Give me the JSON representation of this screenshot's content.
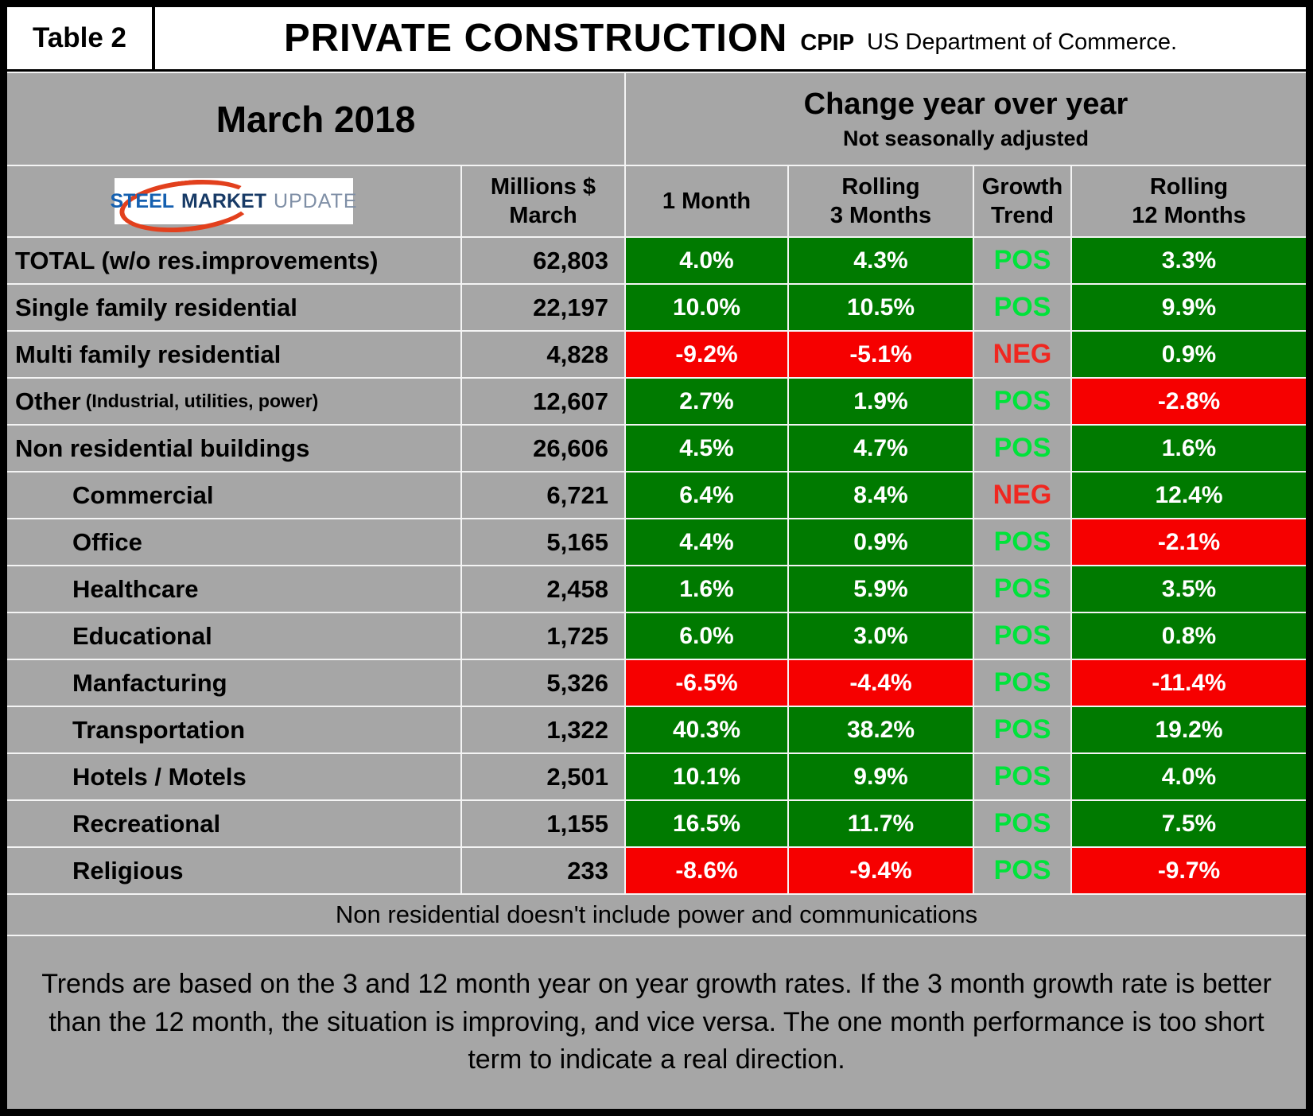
{
  "palette": {
    "gray": "#a6a6a6",
    "green": "#007a00",
    "red": "#f60000",
    "posText": "#00e33a",
    "negText": "#f02720"
  },
  "header": {
    "table_label": "Table 2",
    "title": "PRIVATE CONSTRUCTION",
    "title_suffix": "CPIP",
    "title_source": "US Department of Commerce.",
    "month": "March 2018",
    "change_title": "Change year over year",
    "change_subtitle": "Not seasonally adjusted"
  },
  "logo": {
    "part1": "STEEL",
    "part2": "MARKET",
    "part3": "UPDATE"
  },
  "columns": {
    "millions1": "Millions $",
    "millions2": "March",
    "m1": "1 Month",
    "r3a": "Rolling",
    "r3b": "3 Months",
    "tra": "Growth",
    "trb": "Trend",
    "r12a": "Rolling",
    "r12b": "12 Months"
  },
  "chart_data": {
    "type": "table",
    "title": "PRIVATE CONSTRUCTION CPIP - March 2018 - Change year over year (Not seasonally adjusted)",
    "columns": [
      "",
      "Millions $ March",
      "1 Month",
      "Rolling 3 Months",
      "Growth Trend",
      "Rolling 12 Months"
    ],
    "rows": [
      {
        "label": "TOTAL (w/o res.improvements)",
        "indent": false,
        "millions": "62,803",
        "m1": "4.0%",
        "r3": "4.3%",
        "trend": "POS",
        "r12": "3.3%"
      },
      {
        "label": "Single family residential",
        "indent": false,
        "millions": "22,197",
        "m1": "10.0%",
        "r3": "10.5%",
        "trend": "POS",
        "r12": "9.9%"
      },
      {
        "label": "Multi family residential",
        "indent": false,
        "millions": "4,828",
        "m1": "-9.2%",
        "r3": "-5.1%",
        "trend": "NEG",
        "r12": "0.9%"
      },
      {
        "label": "Other",
        "sublabel": "(Industrial, utilities, power)",
        "indent": false,
        "millions": "12,607",
        "m1": "2.7%",
        "r3": "1.9%",
        "trend": "POS",
        "r12": "-2.8%"
      },
      {
        "label": "Non residential buildings",
        "indent": false,
        "millions": "26,606",
        "m1": "4.5%",
        "r3": "4.7%",
        "trend": "POS",
        "r12": "1.6%"
      },
      {
        "label": "Commercial",
        "indent": true,
        "millions": "6,721",
        "m1": "6.4%",
        "r3": "8.4%",
        "trend": "NEG",
        "r12": "12.4%"
      },
      {
        "label": "Office",
        "indent": true,
        "millions": "5,165",
        "m1": "4.4%",
        "r3": "0.9%",
        "trend": "POS",
        "r12": "-2.1%"
      },
      {
        "label": "Healthcare",
        "indent": true,
        "millions": "2,458",
        "m1": "1.6%",
        "r3": "5.9%",
        "trend": "POS",
        "r12": "3.5%"
      },
      {
        "label": "Educational",
        "indent": true,
        "millions": "1,725",
        "m1": "6.0%",
        "r3": "3.0%",
        "trend": "POS",
        "r12": "0.8%"
      },
      {
        "label": "Manfacturing",
        "indent": true,
        "millions": "5,326",
        "m1": "-6.5%",
        "r3": "-4.4%",
        "trend": "POS",
        "r12": "-11.4%"
      },
      {
        "label": "Transportation",
        "indent": true,
        "millions": "1,322",
        "m1": "40.3%",
        "r3": "38.2%",
        "trend": "POS",
        "r12": "19.2%"
      },
      {
        "label": "Hotels / Motels",
        "indent": true,
        "millions": "2,501",
        "m1": "10.1%",
        "r3": "9.9%",
        "trend": "POS",
        "r12": "4.0%"
      },
      {
        "label": "Recreational",
        "indent": true,
        "millions": "1,155",
        "m1": "16.5%",
        "r3": "11.7%",
        "trend": "POS",
        "r12": "7.5%"
      },
      {
        "label": "Religious",
        "indent": true,
        "millions": "233",
        "m1": "-8.6%",
        "r3": "-9.4%",
        "trend": "POS",
        "r12": "-9.7%"
      }
    ]
  },
  "footnotes": {
    "line1": "Non residential doesn't include power and communications",
    "line2": "Trends are based on the 3 and 12 month year on year growth rates. If the 3 month growth rate is better than the 12 month, the situation is improving, and vice versa. The one month performance is too short term to indicate a real direction."
  }
}
